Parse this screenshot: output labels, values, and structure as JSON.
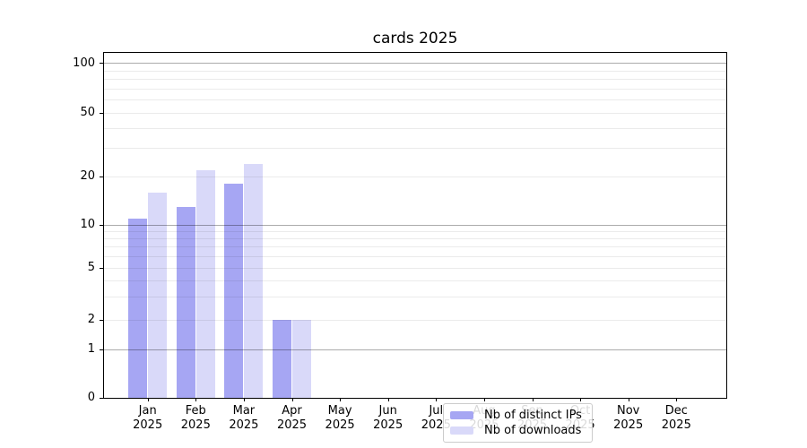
{
  "title": "cards 2025",
  "legend": {
    "items": [
      {
        "label": "Nb of distinct IPs",
        "color": "#a6a6f3"
      },
      {
        "label": "Nb of downloads",
        "color": "#d9d9f9"
      }
    ]
  },
  "x_axis": {
    "months": [
      "Jan",
      "Feb",
      "Mar",
      "Apr",
      "May",
      "Jun",
      "Jul",
      "Aug",
      "Sep",
      "Oct",
      "Nov",
      "Dec"
    ],
    "year": "2025"
  },
  "y_axis": {
    "tick_labels": [
      0,
      1,
      2,
      5,
      10,
      20,
      50,
      100
    ]
  },
  "chart_data": {
    "type": "bar",
    "title": "cards 2025",
    "categories": [
      "Jan 2025",
      "Feb 2025",
      "Mar 2025",
      "Apr 2025",
      "May 2025",
      "Jun 2025",
      "Jul 2025",
      "Aug 2025",
      "Sep 2025",
      "Oct 2025",
      "Nov 2025",
      "Dec 2025"
    ],
    "series": [
      {
        "name": "Nb of distinct IPs",
        "color": "#a6a6f3",
        "values": [
          11,
          13,
          18,
          2,
          0,
          0,
          0,
          0,
          0,
          0,
          0,
          0
        ]
      },
      {
        "name": "Nb of downloads",
        "color": "#d9d9f9",
        "values": [
          16,
          22,
          24,
          2,
          0,
          0,
          0,
          0,
          0,
          0,
          0,
          0
        ]
      }
    ],
    "yscale": "symlog",
    "ylim": [
      0,
      115
    ],
    "yticks": [
      0,
      1,
      2,
      5,
      10,
      20,
      50,
      100
    ],
    "major_gridlines": [
      1,
      10,
      100
    ],
    "minor_gridlines": [
      2,
      3,
      4,
      5,
      6,
      7,
      8,
      9,
      20,
      30,
      40,
      50,
      60,
      70,
      80,
      90
    ],
    "grid": true,
    "legend_position": "lower center inside"
  }
}
